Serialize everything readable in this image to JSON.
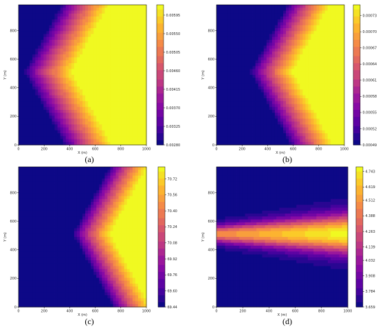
{
  "chart_data": [
    {
      "type": "heatmap",
      "caption": "(a)",
      "xlabel": "X (m)",
      "ylabel": "Y (m)",
      "xticks": [
        0,
        200,
        400,
        600,
        800,
        1000
      ],
      "yticks": [
        0,
        200,
        400,
        600,
        800
      ],
      "xlim": [
        0,
        1000
      ],
      "ylim": [
        0,
        980
      ],
      "colorbar_ticks": [
        "0.00595",
        "0.00550",
        "0.00505",
        "0.00460",
        "0.00415",
        "0.00370",
        "0.00325",
        "0.00280"
      ],
      "value_range": [
        0.0028,
        0.0062
      ],
      "pattern": "wedge",
      "colormap": "plasma",
      "grid": false
    },
    {
      "type": "heatmap",
      "caption": "(b)",
      "xlabel": "X (m)",
      "ylabel": "Y (m)",
      "xticks": [
        0,
        200,
        400,
        600,
        800,
        1000
      ],
      "yticks": [
        0,
        200,
        400,
        600,
        800
      ],
      "xlim": [
        0,
        1000
      ],
      "ylim": [
        0,
        980
      ],
      "colorbar_ticks": [
        "0.00073",
        "0.00070",
        "0.00067",
        "0.00064",
        "0.00061",
        "0.00058",
        "0.00055",
        "0.00052",
        "0.00049"
      ],
      "value_range": [
        0.00049,
        0.00075
      ],
      "pattern": "wedge-narrow",
      "colormap": "plasma",
      "grid": false
    },
    {
      "type": "heatmap",
      "caption": "(c)",
      "xlabel": "X (m)",
      "ylabel": "Y (m)",
      "xticks": [
        0,
        200,
        400,
        600,
        800,
        1000
      ],
      "yticks": [
        0,
        200,
        400,
        600,
        800
      ],
      "xlim": [
        0,
        1000
      ],
      "ylim": [
        0,
        980
      ],
      "colorbar_ticks": [
        "70.72",
        "70.56",
        "70.40",
        "70.24",
        "70.08",
        "69.92",
        "69.76",
        "69.60",
        "69.44"
      ],
      "value_range": [
        69.44,
        70.84
      ],
      "pattern": "wedge-far",
      "colormap": "plasma",
      "grid": false
    },
    {
      "type": "heatmap",
      "caption": "(d)",
      "xlabel": "X (m)",
      "ylabel": "Y (m)",
      "xticks": [
        0,
        200,
        400,
        600,
        800,
        1000
      ],
      "yticks": [
        0,
        200,
        400,
        600,
        800
      ],
      "xlim": [
        0,
        1000
      ],
      "ylim": [
        0,
        980
      ],
      "colorbar_ticks": [
        "4.743",
        "4.619",
        "4.512",
        "4.388",
        "4.263",
        "4.139",
        "4.032",
        "3.908",
        "3.784",
        "3.659"
      ],
      "value_range": [
        3.659,
        4.78
      ],
      "pattern": "band",
      "colormap": "plasma",
      "grid": false
    }
  ]
}
